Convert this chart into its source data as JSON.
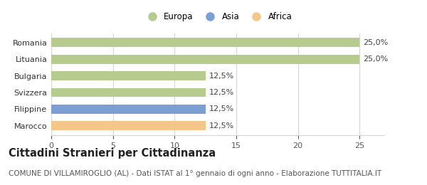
{
  "categories": [
    "Marocco",
    "Filippine",
    "Svizzera",
    "Bulgaria",
    "Lituania",
    "Romania"
  ],
  "values": [
    12.5,
    12.5,
    12.5,
    12.5,
    25.0,
    25.0
  ],
  "bar_colors": [
    "#f5c68a",
    "#7b9fd4",
    "#b5cc8e",
    "#b5cc8e",
    "#b5cc8e",
    "#b5cc8e"
  ],
  "bar_labels": [
    "12,5%",
    "12,5%",
    "12,5%",
    "12,5%",
    "25,0%",
    "25,0%"
  ],
  "xlim": [
    0,
    27
  ],
  "xticks": [
    0,
    5,
    10,
    15,
    20,
    25
  ],
  "title": "Cittadini Stranieri per Cittadinanza",
  "subtitle": "COMUNE DI VILLAMIROGLIO (AL) - Dati ISTAT al 1° gennaio di ogni anno - Elaborazione TUTTITALIA.IT",
  "legend_entries": [
    "Europa",
    "Asia",
    "Africa"
  ],
  "legend_colors": [
    "#b5cc8e",
    "#7b9fd4",
    "#f5c68a"
  ],
  "background_color": "#ffffff",
  "grid_color": "#d5d5d5",
  "bar_height": 0.55,
  "label_fontsize": 8,
  "tick_fontsize": 8,
  "title_fontsize": 10.5,
  "subtitle_fontsize": 7.5
}
